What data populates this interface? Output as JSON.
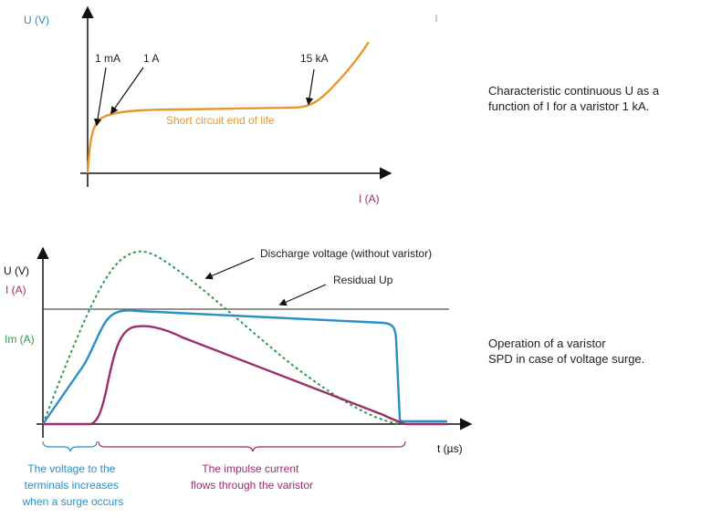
{
  "top_chart": {
    "y_axis_label": "U (V)",
    "x_axis_label": "I (A)",
    "annotations": {
      "ma": "1 mA",
      "one_a": "1 A",
      "fifteen_ka": "15 kA",
      "curve_label": "Short circuit end of life"
    },
    "caption_lines": [
      "Characteristic continuous U as a",
      "function of I for a varistor 1 kA."
    ]
  },
  "bottom_chart": {
    "y_axis_labels": {
      "u": "U (V)",
      "i": "I (A)",
      "im": "Im (A)"
    },
    "x_axis_label": "t (µs)",
    "annotations": {
      "discharge": "Discharge voltage (without varistor)",
      "residual": "Residual Up"
    },
    "left_note_lines": [
      "The voltage to the",
      "terminals increases",
      "when a surge occurs"
    ],
    "right_note_lines": [
      "The impulse current",
      "flows through the varistor"
    ],
    "caption_lines": [
      "Operation of a varistor",
      "SPD in case of voltage surge."
    ]
  },
  "colors": {
    "axis": "#111111",
    "orange": "#e8962e",
    "blue": "#2a8fc4",
    "purple": "#9b2f6a",
    "green": "#2e9a4c",
    "text": "#222222"
  }
}
